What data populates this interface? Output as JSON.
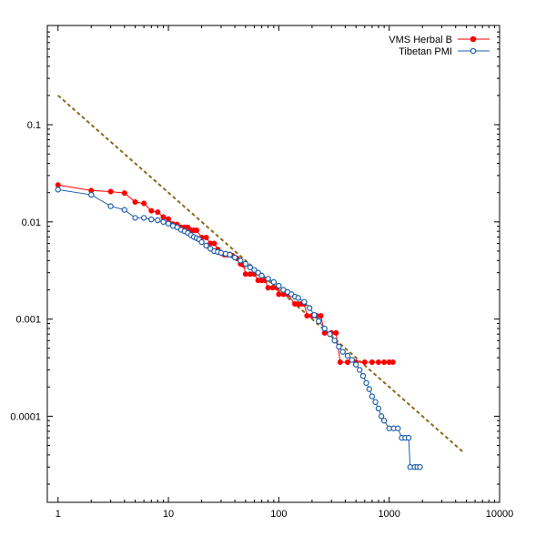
{
  "chart_data": {
    "type": "scatter",
    "title": "",
    "xlabel": "",
    "ylabel": "",
    "x_scale": "log",
    "y_scale": "log",
    "xlim": [
      0.8,
      10000
    ],
    "ylim": [
      1.3e-05,
      1.05
    ],
    "grid": false,
    "legend_position": "top-right",
    "x_ticks": [
      {
        "value": 1,
        "label": "1"
      },
      {
        "value": 10,
        "label": "10"
      },
      {
        "value": 100,
        "label": "100"
      },
      {
        "value": 1000,
        "label": "1000"
      },
      {
        "value": 10000,
        "label": "10000"
      }
    ],
    "y_ticks": [
      {
        "value": 0.1,
        "label": "0.1"
      },
      {
        "value": 0.01,
        "label": "0.01"
      },
      {
        "value": 0.001,
        "label": "0.001"
      },
      {
        "value": 0.0001,
        "label": "0.0001"
      }
    ],
    "series": [
      {
        "name": "VMS Herbal B",
        "color": "#ff0000",
        "marker": "filled-circle",
        "points": [
          [
            1,
            0.024
          ],
          [
            2,
            0.021
          ],
          [
            3,
            0.0205
          ],
          [
            4,
            0.0198
          ],
          [
            5,
            0.016
          ],
          [
            6,
            0.0155
          ],
          [
            7,
            0.013
          ],
          [
            8,
            0.0126
          ],
          [
            9,
            0.0112
          ],
          [
            10,
            0.0107
          ],
          [
            11,
            0.0095
          ],
          [
            12,
            0.0094
          ],
          [
            13,
            0.0088
          ],
          [
            14,
            0.0088
          ],
          [
            15,
            0.0088
          ],
          [
            16,
            0.0082
          ],
          [
            17,
            0.0082
          ],
          [
            18,
            0.0082
          ],
          [
            20,
            0.0069
          ],
          [
            22,
            0.0069
          ],
          [
            24,
            0.006
          ],
          [
            26,
            0.006
          ],
          [
            28,
            0.0052
          ],
          [
            30,
            0.0048
          ],
          [
            32,
            0.0046
          ],
          [
            34,
            0.0046
          ],
          [
            36,
            0.0046
          ],
          [
            38,
            0.0045
          ],
          [
            40,
            0.0043
          ],
          [
            42,
            0.0042
          ],
          [
            45,
            0.0037
          ],
          [
            48,
            0.0036
          ],
          [
            50,
            0.0029
          ],
          [
            55,
            0.0029
          ],
          [
            60,
            0.0029
          ],
          [
            65,
            0.0025
          ],
          [
            70,
            0.0025
          ],
          [
            75,
            0.0025
          ],
          [
            80,
            0.0021
          ],
          [
            88,
            0.0021
          ],
          [
            96,
            0.0021
          ],
          [
            100,
            0.0018
          ],
          [
            110,
            0.0018
          ],
          [
            120,
            0.0018
          ],
          [
            140,
            0.00143
          ],
          [
            150,
            0.00143
          ],
          [
            160,
            0.00143
          ],
          [
            170,
            0.00143
          ],
          [
            180,
            0.00108
          ],
          [
            200,
            0.00108
          ],
          [
            220,
            0.00108
          ],
          [
            240,
            0.00108
          ],
          [
            260,
            0.00072
          ],
          [
            300,
            0.00072
          ],
          [
            330,
            0.00072
          ],
          [
            360,
            0.00036
          ],
          [
            420,
            0.00036
          ],
          [
            500,
            0.00036
          ],
          [
            600,
            0.00036
          ],
          [
            700,
            0.00036
          ],
          [
            800,
            0.00036
          ],
          [
            900,
            0.00036
          ],
          [
            1000,
            0.00036
          ],
          [
            1080,
            0.00036
          ]
        ]
      },
      {
        "name": "Tibetan PMI",
        "color": "#1f5fa8",
        "marker": "open-circle",
        "points": [
          [
            1,
            0.0215
          ],
          [
            2,
            0.019
          ],
          [
            3,
            0.0145
          ],
          [
            4,
            0.0133
          ],
          [
            5,
            0.011
          ],
          [
            6,
            0.011
          ],
          [
            7,
            0.0106
          ],
          [
            8,
            0.0104
          ],
          [
            9,
            0.01
          ],
          [
            10,
            0.0096
          ],
          [
            11,
            0.0091
          ],
          [
            12,
            0.0088
          ],
          [
            13,
            0.0083
          ],
          [
            14,
            0.008
          ],
          [
            15,
            0.0077
          ],
          [
            16,
            0.0073
          ],
          [
            17,
            0.007
          ],
          [
            18,
            0.0068
          ],
          [
            19,
            0.0066
          ],
          [
            20,
            0.0062
          ],
          [
            22,
            0.0057
          ],
          [
            24,
            0.0053
          ],
          [
            26,
            0.005
          ],
          [
            28,
            0.0049
          ],
          [
            30,
            0.0048
          ],
          [
            33,
            0.0047
          ],
          [
            36,
            0.0046
          ],
          [
            40,
            0.0043
          ],
          [
            45,
            0.004
          ],
          [
            50,
            0.0037
          ],
          [
            55,
            0.0034
          ],
          [
            60,
            0.0032
          ],
          [
            65,
            0.003
          ],
          [
            70,
            0.0028
          ],
          [
            80,
            0.0026
          ],
          [
            90,
            0.0024
          ],
          [
            100,
            0.0022
          ],
          [
            110,
            0.002
          ],
          [
            120,
            0.0019
          ],
          [
            130,
            0.0018
          ],
          [
            140,
            0.0017
          ],
          [
            150,
            0.00165
          ],
          [
            170,
            0.0015
          ],
          [
            190,
            0.0013
          ],
          [
            210,
            0.0011
          ],
          [
            230,
            0.00095
          ],
          [
            260,
            0.0008
          ],
          [
            290,
            0.0007
          ],
          [
            320,
            0.0006
          ],
          [
            350,
            0.00052
          ],
          [
            380,
            0.00046
          ],
          [
            420,
            0.00042
          ],
          [
            460,
            0.00038
          ],
          [
            500,
            0.00034
          ],
          [
            540,
            0.0003
          ],
          [
            580,
            0.00026
          ],
          [
            620,
            0.00022
          ],
          [
            660,
            0.00019
          ],
          [
            700,
            0.00016
          ],
          [
            750,
            0.00014
          ],
          [
            800,
            0.00012
          ],
          [
            850,
            0.0001
          ],
          [
            900,
            9e-05
          ],
          [
            1000,
            7.5e-05
          ],
          [
            1100,
            7.5e-05
          ],
          [
            1200,
            7.5e-05
          ],
          [
            1300,
            6e-05
          ],
          [
            1400,
            6e-05
          ],
          [
            1500,
            6e-05
          ],
          [
            1550,
            3e-05
          ],
          [
            1700,
            3e-05
          ],
          [
            1800,
            3e-05
          ],
          [
            1900,
            3e-05
          ]
        ]
      },
      {
        "name": "",
        "color": "#8b6a1a",
        "style": "dashed",
        "points": [
          [
            1,
            0.2
          ],
          [
            4650,
            4.3e-05
          ]
        ]
      }
    ]
  }
}
